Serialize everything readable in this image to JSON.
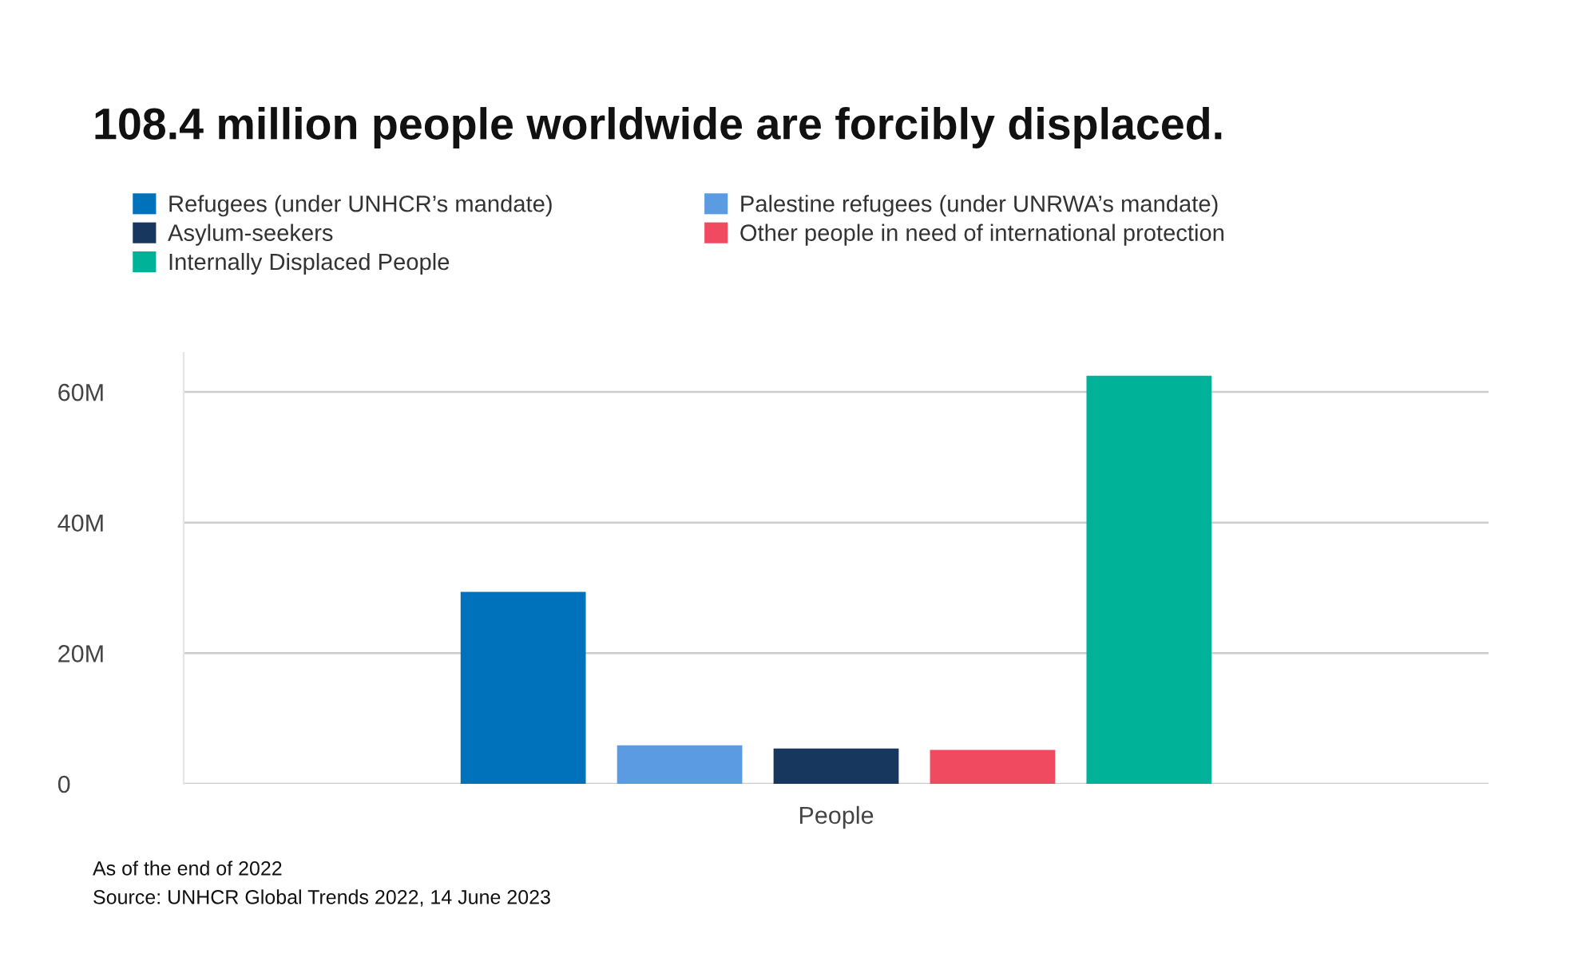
{
  "chart_data": {
    "type": "bar",
    "title": "108.4 million people worldwide are forcibly displaced.",
    "categories": [
      "People"
    ],
    "series": [
      {
        "name": "Refugees (under UNHCR’s mandate)",
        "color": "#0072bc",
        "values": [
          29.4
        ]
      },
      {
        "name": "Palestine refugees (under UNRWA’s mandate)",
        "color": "#5b9be1",
        "values": [
          5.9
        ]
      },
      {
        "name": "Asylum-seekers",
        "color": "#18375f",
        "values": [
          5.4
        ]
      },
      {
        "name": "Other people in need of international protection",
        "color": "#ef4a60",
        "values": [
          5.2
        ]
      },
      {
        "name": "Internally Displaced People",
        "color": "#00b398",
        "values": [
          62.5
        ]
      }
    ],
    "yticks": [
      {
        "value": 0,
        "label": "0"
      },
      {
        "value": 20,
        "label": "20M"
      },
      {
        "value": 40,
        "label": "40M"
      },
      {
        "value": 60,
        "label": "60M"
      }
    ],
    "ylim": [
      0,
      66
    ],
    "grid": "y",
    "legend": "top left",
    "annotations": [
      "As of the end of 2022",
      "Source: UNHCR Global Trends 2022, 14 June 2023"
    ]
  }
}
